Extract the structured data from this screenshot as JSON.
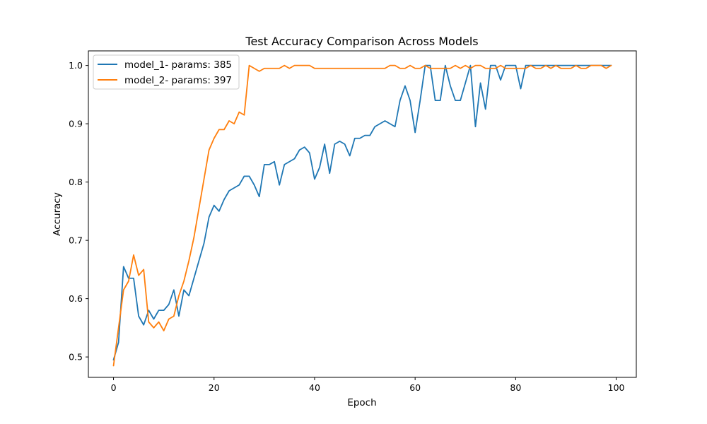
{
  "chart_data": {
    "type": "line",
    "title": "Test Accuracy Comparison Across Models",
    "xlabel": "Epoch",
    "ylabel": "Accuracy",
    "xlim": [
      -5,
      104
    ],
    "ylim": [
      0.465,
      1.025
    ],
    "xticks": [
      0,
      20,
      40,
      60,
      80,
      100
    ],
    "yticks": [
      0.5,
      0.6,
      0.7,
      0.8,
      0.9,
      1.0
    ],
    "xtick_labels": [
      "0",
      "20",
      "40",
      "60",
      "80",
      "100"
    ],
    "ytick_labels": [
      "0.5",
      "0.6",
      "0.7",
      "0.8",
      "0.9",
      "1.0"
    ],
    "grid": false,
    "legend_position": "top-left",
    "series": [
      {
        "name": "model_1- params: 385",
        "color": "#1f77b4",
        "values": [
          0.495,
          0.525,
          0.655,
          0.635,
          0.635,
          0.57,
          0.555,
          0.58,
          0.565,
          0.58,
          0.58,
          0.59,
          0.615,
          0.57,
          0.615,
          0.605,
          0.635,
          0.665,
          0.695,
          0.74,
          0.76,
          0.75,
          0.77,
          0.785,
          0.79,
          0.795,
          0.81,
          0.81,
          0.795,
          0.775,
          0.83,
          0.83,
          0.835,
          0.795,
          0.83,
          0.835,
          0.84,
          0.855,
          0.86,
          0.85,
          0.805,
          0.825,
          0.865,
          0.815,
          0.865,
          0.87,
          0.865,
          0.845,
          0.875,
          0.875,
          0.88,
          0.88,
          0.895,
          0.9,
          0.905,
          0.9,
          0.895,
          0.94,
          0.965,
          0.94,
          0.885,
          0.94,
          1.0,
          1.0,
          0.94,
          0.94,
          1.0,
          0.965,
          0.94,
          0.94,
          0.97,
          1.0,
          0.895,
          0.97,
          0.925,
          1.0,
          1.0,
          0.975,
          1.0,
          1.0,
          1.0,
          0.96,
          1.0,
          1.0,
          1.0,
          1.0,
          1.0,
          1.0,
          1.0,
          1.0,
          1.0,
          1.0,
          1.0,
          1.0,
          1.0,
          1.0,
          1.0,
          1.0,
          1.0,
          1.0
        ]
      },
      {
        "name": "model_2- params: 397",
        "color": "#ff7f0e",
        "values": [
          0.485,
          0.55,
          0.615,
          0.63,
          0.675,
          0.64,
          0.65,
          0.56,
          0.55,
          0.56,
          0.545,
          0.565,
          0.57,
          0.605,
          0.63,
          0.665,
          0.705,
          0.755,
          0.805,
          0.855,
          0.875,
          0.89,
          0.89,
          0.905,
          0.9,
          0.92,
          0.915,
          1.0,
          0.995,
          0.99,
          0.995,
          0.995,
          0.995,
          0.995,
          1.0,
          0.995,
          1.0,
          1.0,
          1.0,
          1.0,
          0.995,
          0.995,
          0.995,
          0.995,
          0.995,
          0.995,
          0.995,
          0.995,
          0.995,
          0.995,
          0.995,
          0.995,
          0.995,
          0.995,
          0.995,
          1.0,
          1.0,
          0.995,
          0.995,
          1.0,
          0.995,
          0.995,
          1.0,
          0.995,
          0.995,
          0.995,
          0.995,
          0.995,
          1.0,
          0.995,
          1.0,
          0.995,
          1.0,
          1.0,
          0.995,
          0.995,
          0.995,
          1.0,
          0.995,
          0.995,
          0.995,
          0.995,
          0.995,
          1.0,
          0.995,
          0.995,
          1.0,
          0.995,
          1.0,
          0.995,
          0.995,
          0.995,
          1.0,
          0.995,
          0.995,
          1.0,
          1.0,
          1.0,
          0.995,
          1.0
        ]
      }
    ]
  }
}
